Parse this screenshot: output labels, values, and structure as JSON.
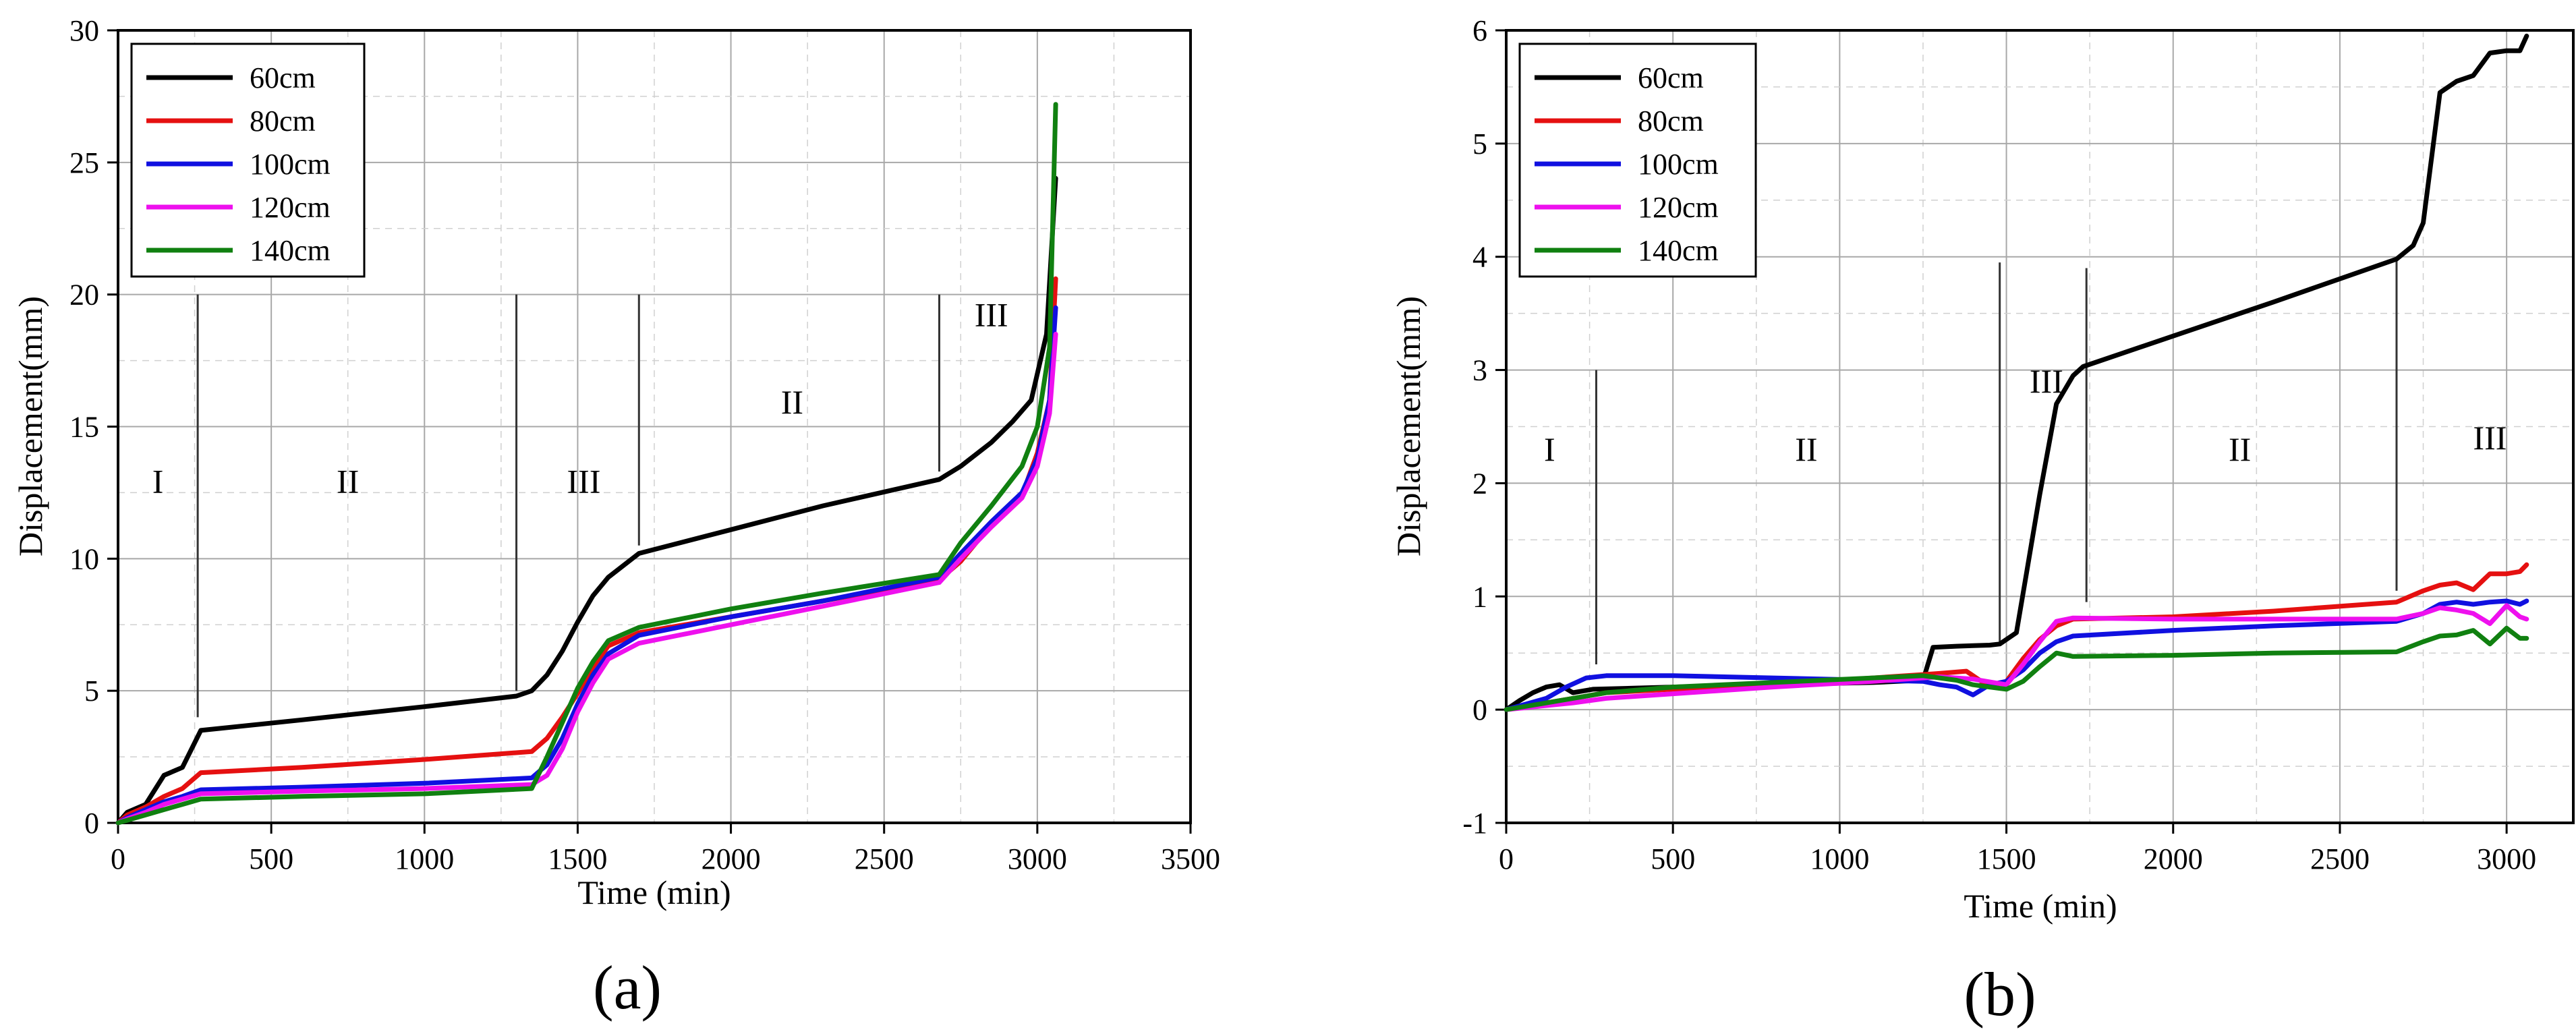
{
  "chart_data": [
    {
      "panel": "(a)",
      "type": "line",
      "title": "",
      "xlabel": "Time (min)",
      "ylabel": "Displacement(mm)",
      "xlim": [
        0,
        3500
      ],
      "ylim": [
        0,
        30
      ],
      "xticks": [
        0,
        500,
        1000,
        1500,
        2000,
        2500,
        3000,
        3500
      ],
      "yticks": [
        0,
        5,
        10,
        15,
        20,
        25,
        30
      ],
      "grid": true,
      "legend_position": "top-left",
      "series": [
        {
          "name": "60cm",
          "color": "#000000",
          "x": [
            0,
            30,
            90,
            150,
            210,
            270,
            600,
            1000,
            1300,
            1350,
            1400,
            1450,
            1500,
            1550,
            1600,
            1700,
            2000,
            2300,
            2680,
            2750,
            2850,
            2920,
            2980,
            3030,
            3060
          ],
          "y": [
            0,
            0.4,
            0.7,
            1.8,
            2.1,
            3.5,
            3.9,
            4.4,
            4.8,
            5.0,
            5.6,
            6.5,
            7.6,
            8.6,
            9.3,
            10.2,
            11.1,
            12.0,
            13.0,
            13.5,
            14.4,
            15.2,
            16.0,
            18.5,
            24.4
          ]
        },
        {
          "name": "80cm",
          "color": "#e51010",
          "x": [
            0,
            30,
            90,
            150,
            210,
            270,
            600,
            1000,
            1350,
            1400,
            1450,
            1500,
            1550,
            1600,
            1700,
            2000,
            2300,
            2680,
            2750,
            2850,
            2950,
            3000,
            3040,
            3060
          ],
          "y": [
            0,
            0.3,
            0.6,
            1.0,
            1.3,
            1.9,
            2.1,
            2.4,
            2.7,
            3.2,
            4.0,
            4.9,
            5.9,
            6.7,
            7.2,
            7.8,
            8.4,
            9.2,
            9.9,
            11.3,
            12.4,
            14.0,
            16.0,
            20.6
          ]
        },
        {
          "name": "100cm",
          "color": "#1010e0",
          "x": [
            0,
            30,
            90,
            150,
            210,
            270,
            600,
            1000,
            1350,
            1400,
            1450,
            1500,
            1550,
            1600,
            1700,
            2000,
            2300,
            2680,
            2750,
            2850,
            2950,
            3000,
            3040,
            3060
          ],
          "y": [
            0,
            0.2,
            0.5,
            0.8,
            1.0,
            1.25,
            1.35,
            1.5,
            1.7,
            2.2,
            3.2,
            4.5,
            5.6,
            6.4,
            7.1,
            7.8,
            8.4,
            9.3,
            10.2,
            11.4,
            12.5,
            13.8,
            16.0,
            19.5
          ]
        },
        {
          "name": "120cm",
          "color": "#ee10ee",
          "x": [
            0,
            30,
            90,
            150,
            210,
            270,
            600,
            1000,
            1350,
            1400,
            1450,
            1500,
            1550,
            1600,
            1700,
            2000,
            2300,
            2680,
            2750,
            2850,
            2950,
            3000,
            3040,
            3060
          ],
          "y": [
            0,
            0.15,
            0.4,
            0.7,
            0.9,
            1.1,
            1.2,
            1.3,
            1.45,
            1.8,
            2.8,
            4.2,
            5.3,
            6.2,
            6.8,
            7.5,
            8.2,
            9.1,
            10.0,
            11.2,
            12.3,
            13.5,
            15.5,
            18.5
          ]
        },
        {
          "name": "140cm",
          "color": "#108010",
          "x": [
            0,
            30,
            90,
            150,
            210,
            270,
            600,
            1000,
            1350,
            1400,
            1450,
            1500,
            1550,
            1600,
            1700,
            2000,
            2300,
            2680,
            2750,
            2850,
            2950,
            3000,
            3040,
            3060
          ],
          "y": [
            0,
            0.1,
            0.3,
            0.5,
            0.7,
            0.9,
            1.0,
            1.1,
            1.3,
            2.5,
            3.8,
            5.1,
            6.1,
            6.9,
            7.4,
            8.1,
            8.7,
            9.4,
            10.6,
            12.0,
            13.5,
            15.0,
            18.0,
            27.2
          ]
        }
      ],
      "stage_lines": [
        {
          "x": 260,
          "y_from": 4.0,
          "y_to": 20.0
        },
        {
          "x": 1300,
          "y_from": 5.0,
          "y_to": 20.0
        },
        {
          "x": 1700,
          "y_from": 10.5,
          "y_to": 20.0
        },
        {
          "x": 2680,
          "y_from": 13.3,
          "y_to": 20.0
        }
      ],
      "stage_labels": [
        {
          "text": "I",
          "x": 130,
          "y": 12.5
        },
        {
          "text": "II",
          "x": 750,
          "y": 12.5
        },
        {
          "text": "III",
          "x": 1520,
          "y": 12.5
        },
        {
          "text": "II",
          "x": 2200,
          "y": 15.5
        },
        {
          "text": "III",
          "x": 2850,
          "y": 18.8
        }
      ],
      "caption": "(a)"
    },
    {
      "panel": "(b)",
      "type": "line",
      "title": "",
      "xlabel": "Time (min)",
      "ylabel": "Displacement(mm)",
      "xlim": [
        0,
        3200
      ],
      "ylim": [
        -1,
        6
      ],
      "xticks": [
        0,
        500,
        1000,
        1500,
        2000,
        2500,
        3000
      ],
      "yticks": [
        -1,
        0,
        1,
        2,
        3,
        4,
        5,
        6
      ],
      "grid": true,
      "legend_position": "top-left",
      "series": [
        {
          "name": "60cm",
          "color": "#000000",
          "x": [
            0,
            40,
            80,
            120,
            160,
            200,
            260,
            500,
            800,
            1100,
            1250,
            1280,
            1350,
            1450,
            1480,
            1530,
            1560,
            1600,
            1650,
            1700,
            1730,
            2000,
            2300,
            2670,
            2720,
            2750,
            2800,
            2850,
            2900,
            2950,
            3000,
            3040,
            3060
          ],
          "y": [
            0,
            0.08,
            0.15,
            0.2,
            0.22,
            0.15,
            0.18,
            0.2,
            0.22,
            0.24,
            0.26,
            0.55,
            0.56,
            0.57,
            0.58,
            0.68,
            1.2,
            1.9,
            2.7,
            2.95,
            3.03,
            3.3,
            3.6,
            3.98,
            4.1,
            4.3,
            5.45,
            5.55,
            5.6,
            5.8,
            5.82,
            5.82,
            5.95
          ]
        },
        {
          "name": "80cm",
          "color": "#e51010",
          "x": [
            0,
            100,
            200,
            300,
            500,
            800,
            1100,
            1250,
            1300,
            1380,
            1450,
            1500,
            1550,
            1600,
            1650,
            1700,
            2000,
            2300,
            2670,
            2750,
            2800,
            2850,
            2900,
            2950,
            3000,
            3040,
            3060
          ],
          "y": [
            0,
            0.05,
            0.1,
            0.15,
            0.18,
            0.22,
            0.28,
            0.31,
            0.32,
            0.34,
            0.2,
            0.25,
            0.45,
            0.62,
            0.74,
            0.8,
            0.82,
            0.87,
            0.95,
            1.05,
            1.1,
            1.12,
            1.06,
            1.2,
            1.2,
            1.22,
            1.28
          ]
        },
        {
          "name": "100cm",
          "color": "#1010e0",
          "x": [
            0,
            60,
            120,
            180,
            240,
            300,
            500,
            800,
            1100,
            1250,
            1300,
            1350,
            1400,
            1450,
            1500,
            1550,
            1600,
            1650,
            1700,
            2000,
            2300,
            2670,
            2750,
            2800,
            2850,
            2900,
            2950,
            3000,
            3040,
            3060
          ],
          "y": [
            0,
            0.05,
            0.1,
            0.2,
            0.28,
            0.3,
            0.3,
            0.28,
            0.26,
            0.25,
            0.22,
            0.2,
            0.13,
            0.22,
            0.25,
            0.35,
            0.5,
            0.6,
            0.65,
            0.7,
            0.74,
            0.78,
            0.85,
            0.93,
            0.95,
            0.93,
            0.95,
            0.96,
            0.93,
            0.96
          ]
        },
        {
          "name": "120cm",
          "color": "#ee10ee",
          "x": [
            0,
            100,
            200,
            300,
            500,
            800,
            1100,
            1250,
            1300,
            1400,
            1500,
            1550,
            1600,
            1650,
            1700,
            2000,
            2300,
            2670,
            2750,
            2800,
            2850,
            2900,
            2950,
            3000,
            3040,
            3060
          ],
          "y": [
            0,
            0.03,
            0.06,
            0.1,
            0.14,
            0.2,
            0.25,
            0.28,
            0.29,
            0.27,
            0.22,
            0.4,
            0.6,
            0.78,
            0.81,
            0.8,
            0.8,
            0.8,
            0.85,
            0.9,
            0.88,
            0.85,
            0.76,
            0.92,
            0.82,
            0.8
          ]
        },
        {
          "name": "140cm",
          "color": "#108010",
          "x": [
            0,
            100,
            200,
            300,
            500,
            800,
            1100,
            1250,
            1300,
            1350,
            1400,
            1450,
            1500,
            1550,
            1600,
            1650,
            1700,
            2000,
            2300,
            2670,
            2750,
            2800,
            2850,
            2900,
            2950,
            3000,
            3040,
            3060
          ],
          "y": [
            0,
            0.05,
            0.1,
            0.15,
            0.2,
            0.24,
            0.28,
            0.3,
            0.28,
            0.26,
            0.22,
            0.2,
            0.18,
            0.25,
            0.38,
            0.5,
            0.47,
            0.48,
            0.5,
            0.51,
            0.6,
            0.65,
            0.66,
            0.7,
            0.58,
            0.72,
            0.63,
            0.63
          ]
        }
      ],
      "stage_lines": [
        {
          "x": 270,
          "y_from": 0.4,
          "y_to": 3.0
        },
        {
          "x": 1480,
          "y_from": 0.6,
          "y_to": 3.95
        },
        {
          "x": 1740,
          "y_from": 0.95,
          "y_to": 3.9
        },
        {
          "x": 2670,
          "y_from": 1.05,
          "y_to": 3.98
        }
      ],
      "stage_labels": [
        {
          "text": "I",
          "x": 130,
          "y": 2.2
        },
        {
          "text": "II",
          "x": 900,
          "y": 2.2
        },
        {
          "text": "III",
          "x": 1620,
          "y": 2.8
        },
        {
          "text": "II",
          "x": 2200,
          "y": 2.2
        },
        {
          "text": "III",
          "x": 2950,
          "y": 2.3
        }
      ],
      "caption": "(b)"
    }
  ]
}
